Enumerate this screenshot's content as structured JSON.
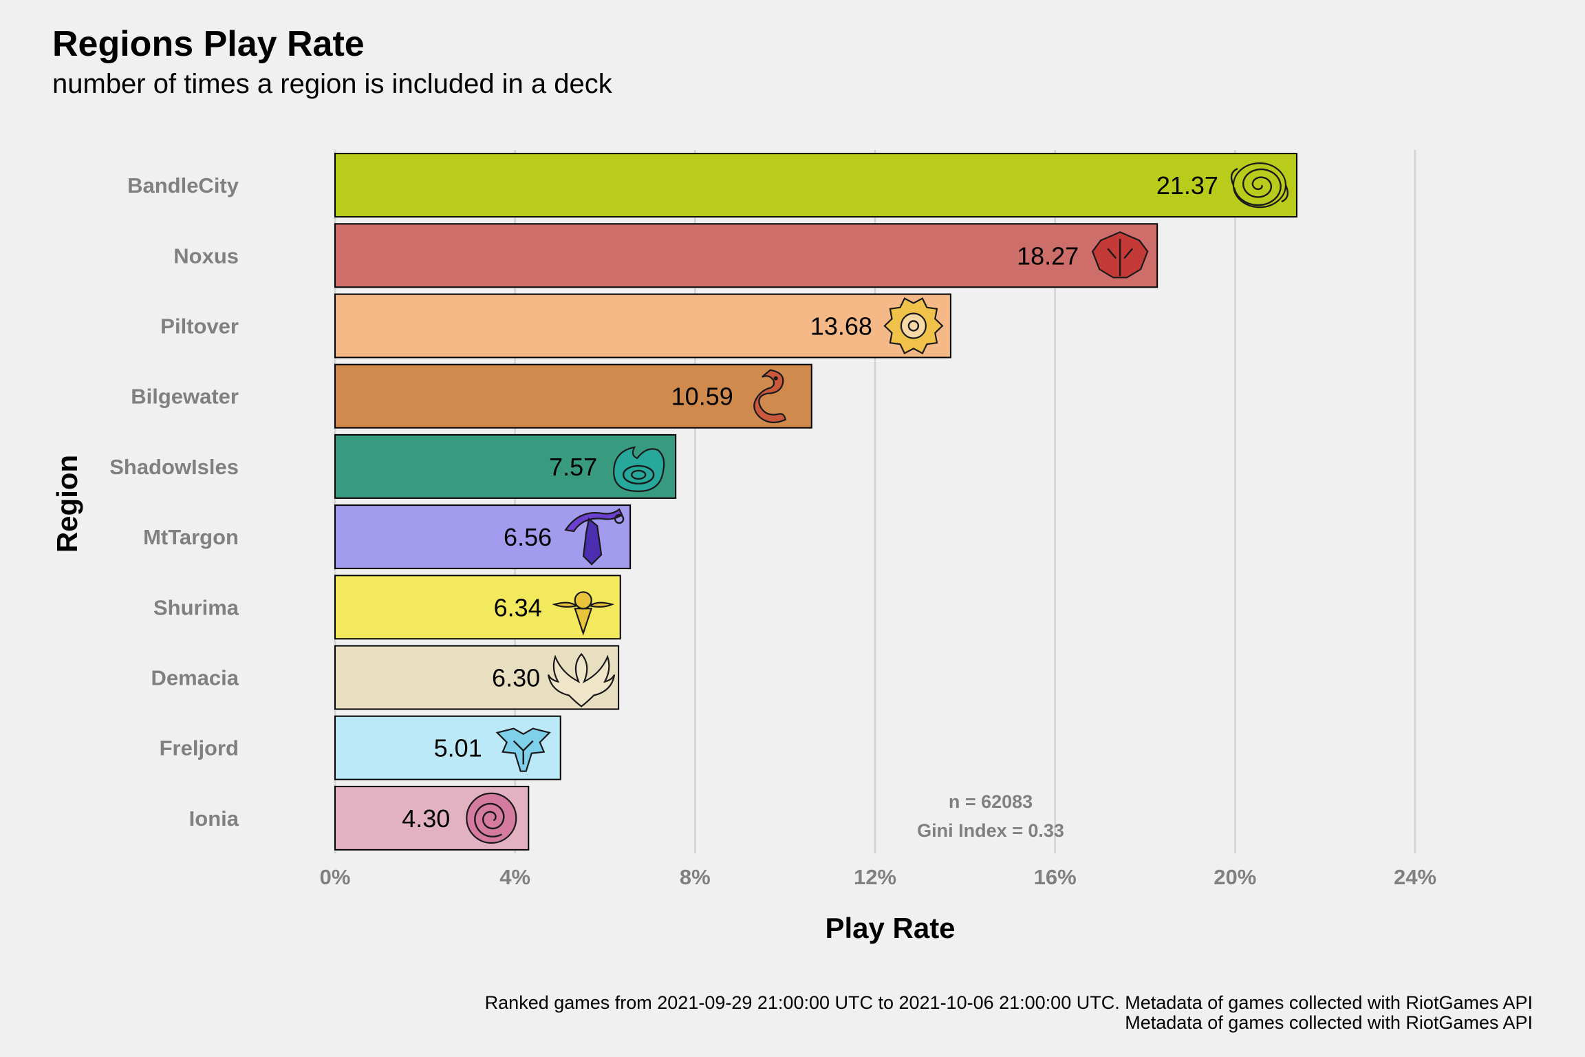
{
  "title": "Regions Play Rate",
  "subtitle": "number of times a region is included in a deck",
  "caption": {
    "line1": "Ranked games from 2021-09-29 21:00:00 UTC to 2021-10-06 21:00:00 UTC. Metadata of games collected with RiotGames API",
    "line2": "Metadata of games collected with RiotGames API"
  },
  "annotations": {
    "n": "n = 62083",
    "gini": "Gini Index = 0.33"
  },
  "chart_data": {
    "type": "bar",
    "orientation": "horizontal",
    "title": "Regions Play Rate",
    "subtitle": "number of times a region is included in a deck",
    "xlabel": "Play Rate",
    "ylabel": "Region",
    "xlim": [
      0,
      24
    ],
    "xticks": [
      0,
      4,
      8,
      12,
      16,
      20,
      24
    ],
    "xtick_labels": [
      "0%",
      "4%",
      "8%",
      "12%",
      "16%",
      "20%",
      "24%"
    ],
    "grid": "vertical major",
    "legend": "none",
    "categories": [
      "BandleCity",
      "Noxus",
      "Piltover",
      "Bilgewater",
      "ShadowIsles",
      "MtTargon",
      "Shurima",
      "Demacia",
      "Freljord",
      "Ionia"
    ],
    "values": [
      21.37,
      18.27,
      13.68,
      10.59,
      7.57,
      6.56,
      6.34,
      6.3,
      5.01,
      4.3
    ],
    "value_labels": [
      "21.37",
      "18.27",
      "13.68",
      "10.59",
      "7.57",
      "6.56",
      "6.34",
      "6.30",
      "5.01",
      "4.30"
    ],
    "colors": [
      "#b9cc1b",
      "#cd6e6a",
      "#f5b987",
      "#d18a4e",
      "#389a7e",
      "#a29bee",
      "#f2e95c",
      "#e8dfc0",
      "#bbe9f7",
      "#e2b2c3"
    ],
    "icon_colors": [
      "#b9cc1b",
      "#c43a36",
      "#f0c24a",
      "#c9583d",
      "#27a89a",
      "#6b3fd0",
      "#e8c43a",
      "#efe6c9",
      "#7fd0ea",
      "#d57ba0"
    ],
    "icons": [
      "bandlecity-spiral-icon",
      "noxus-crest-icon",
      "piltover-gear-icon",
      "bilgewater-serpent-icon",
      "shadowisles-wisp-icon",
      "mttargon-crescent-icon",
      "shurima-sun-disc-icon",
      "demacia-wings-icon",
      "freljord-crest-icon",
      "ionia-swirl-icon"
    ]
  }
}
